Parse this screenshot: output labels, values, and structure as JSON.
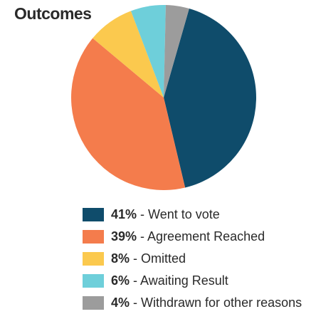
{
  "chart_data": {
    "type": "pie",
    "title": "Outcomes",
    "slices": [
      {
        "label": "Went to vote",
        "value": 41,
        "display": "41%",
        "color": "#0f4c6b"
      },
      {
        "label": "Agreement Reached",
        "value": 39,
        "display": "39%",
        "color": "#f47c4c"
      },
      {
        "label": "Omitted",
        "value": 8,
        "display": "8%",
        "color": "#fbc94e"
      },
      {
        "label": "Awaiting Result",
        "value": 6,
        "display": "6%",
        "color": "#6ecfda"
      },
      {
        "label": "Withdrawn for other reasons",
        "value": 4,
        "display": "4%",
        "color": "#9c9c9c"
      }
    ],
    "legend_placement": "bottom",
    "start_angle_deg": 16,
    "direction": "clockwise"
  }
}
